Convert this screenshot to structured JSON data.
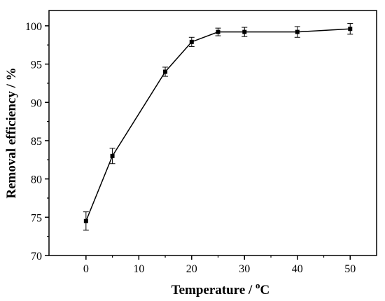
{
  "chart_data": {
    "type": "line",
    "xlabel": "Temperature / ",
    "xlabel_unit_sup": "o",
    "xlabel_unit": "C",
    "ylabel": "Removal efficiency / %",
    "xlim": [
      -7,
      55
    ],
    "ylim": [
      70,
      102
    ],
    "x_ticks": [
      0,
      10,
      20,
      30,
      40,
      50
    ],
    "y_ticks": [
      70,
      75,
      80,
      85,
      90,
      95,
      100
    ],
    "grid": false,
    "series": [
      {
        "x": [
          0,
          5,
          15,
          20,
          25,
          30,
          40,
          50
        ],
        "y": [
          74.5,
          83.0,
          94.0,
          97.9,
          99.2,
          99.2,
          99.2,
          99.6
        ],
        "error": [
          1.2,
          1.0,
          0.6,
          0.6,
          0.5,
          0.6,
          0.7,
          0.7
        ],
        "color": "#000000",
        "marker": "square"
      }
    ]
  }
}
